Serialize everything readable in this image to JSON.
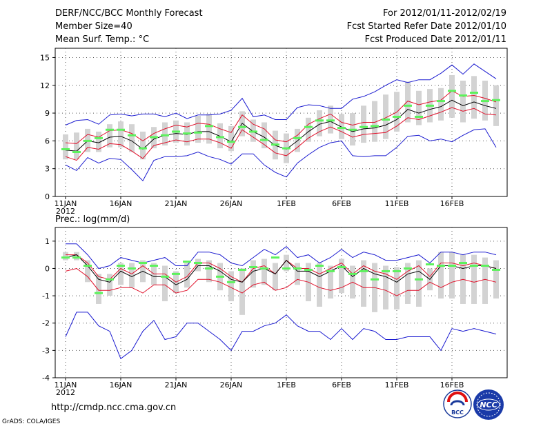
{
  "header": {
    "title": "DERF/NCC/BCC Monthly Forecast",
    "member_size": "Member Size=40",
    "variable": "Mean Surf. Temp.: °C",
    "period": "For 2012/01/11-2012/02/19",
    "started": "Fcst Started Refer Date 2012/01/10",
    "produced": "Fcst Produced Date 2012/01/11"
  },
  "footer": {
    "url": "http://cmdp.ncc.cma.gov.cn",
    "credit": "GrADS: COLA/IGES",
    "logo_bcc_text": "BCC",
    "logo_ncc_text": "NCC"
  },
  "colors": {
    "box": "#d3d3d3",
    "median": "#5cf25c",
    "mean": "#000000",
    "sd": "#e0102a",
    "range": "#1a1ad0",
    "grid": "#555555"
  },
  "chart_data": [
    {
      "type": "line",
      "title": "Mean Surf. Temp.: °C",
      "xlabel": "",
      "ylabel": "",
      "x_tick_labels": [
        "11JAN",
        "16JAN",
        "21JAN",
        "26JAN",
        "1FEB",
        "6FEB",
        "11FEB",
        "16FEB"
      ],
      "x_year_label": "2012",
      "y_ticks": [
        0,
        3,
        6,
        9,
        12,
        15
      ],
      "ylim": [
        0,
        16
      ],
      "days": 40,
      "series": [
        {
          "name": "max",
          "values": [
            3.4,
            2.8,
            4.2,
            3.6,
            4.1,
            4.0,
            2.9,
            1.7,
            3.9,
            4.3,
            4.3,
            4.4,
            4.8,
            4.3,
            4.0,
            3.5,
            4.6,
            4.6,
            3.4,
            2.6,
            2.1,
            3.6,
            4.5,
            5.3,
            5.8,
            6.0,
            4.4,
            4.3,
            4.4,
            4.4,
            5.3,
            6.5,
            6.6,
            6.0,
            6.2,
            5.9,
            6.6,
            7.2,
            7.3,
            5.3
          ]
        },
        {
          "name": "p-sd",
          "values": [
            4.3,
            3.9,
            5.3,
            5.1,
            5.7,
            5.6,
            4.9,
            4.1,
            5.5,
            5.8,
            6.1,
            5.9,
            6.2,
            6.2,
            5.8,
            5.2,
            7.2,
            6.4,
            5.6,
            4.7,
            4.4,
            5.3,
            6.3,
            7.0,
            7.5,
            7.0,
            6.4,
            6.7,
            6.8,
            6.9,
            7.6,
            8.5,
            8.3,
            8.7,
            9.1,
            9.6,
            9.2,
            9.5,
            8.9,
            8.8
          ]
        },
        {
          "name": "mean",
          "values": [
            5.0,
            4.9,
            6.0,
            5.8,
            6.4,
            6.5,
            6.0,
            5.1,
            6.2,
            6.6,
            6.8,
            6.7,
            7.0,
            7.0,
            6.5,
            5.9,
            7.9,
            7.0,
            6.4,
            5.5,
            5.1,
            6.0,
            7.0,
            7.8,
            8.1,
            7.5,
            7.0,
            7.3,
            7.4,
            7.7,
            8.3,
            9.4,
            9.0,
            9.4,
            9.7,
            10.4,
            9.8,
            10.2,
            9.8,
            9.5
          ]
        },
        {
          "name": "p+sd",
          "values": [
            5.8,
            5.7,
            6.7,
            6.4,
            7.1,
            7.2,
            6.8,
            6.0,
            6.8,
            7.3,
            7.7,
            7.5,
            7.9,
            7.8,
            7.3,
            6.9,
            8.8,
            7.8,
            7.3,
            6.1,
            5.9,
            6.6,
            7.8,
            8.4,
            8.9,
            8.0,
            7.7,
            8.0,
            8.0,
            8.5,
            9.1,
            10.3,
            9.9,
            10.2,
            10.4,
            11.4,
            10.8,
            10.9,
            10.6,
            10.2
          ]
        },
        {
          "name": "min",
          "values": [
            7.7,
            8.2,
            8.3,
            7.8,
            8.8,
            8.9,
            8.7,
            8.9,
            8.9,
            8.6,
            9.0,
            8.4,
            8.8,
            8.8,
            8.9,
            9.3,
            10.6,
            8.6,
            8.8,
            8.3,
            8.3,
            9.6,
            9.9,
            9.8,
            9.5,
            9.5,
            10.5,
            10.8,
            11.3,
            12.0,
            12.6,
            12.3,
            12.6,
            12.6,
            13.3,
            14.2,
            13.2,
            14.3,
            13.5,
            12.7
          ]
        },
        {
          "name": "median",
          "values": [
            5.1,
            4.8,
            6.0,
            6.3,
            7.2,
            7.2,
            6.6,
            5.2,
            6.4,
            6.6,
            7.0,
            6.8,
            6.9,
            7.6,
            6.4,
            5.9,
            7.5,
            7.0,
            6.1,
            5.6,
            5.2,
            6.3,
            7.5,
            8.2,
            8.2,
            7.4,
            7.2,
            7.5,
            7.6,
            8.3,
            8.6,
            9.8,
            8.6,
            9.8,
            10.3,
            11.4,
            10.9,
            11.2,
            10.3,
            10.4
          ]
        },
        {
          "name": "box_low",
          "values": [
            4.0,
            4.0,
            4.8,
            4.8,
            5.3,
            5.3,
            4.8,
            4.0,
            5.2,
            5.5,
            5.8,
            5.5,
            5.8,
            5.7,
            5.2,
            4.9,
            6.5,
            5.9,
            5.2,
            4.0,
            3.6,
            4.8,
            5.9,
            6.5,
            6.8,
            6.2,
            5.5,
            5.8,
            5.9,
            6.2,
            7.0,
            8.0,
            7.7,
            8.0,
            8.2,
            8.5,
            8.0,
            8.4,
            8.2,
            7.6
          ]
        },
        {
          "name": "box_high",
          "values": [
            6.7,
            6.9,
            7.3,
            7.0,
            7.8,
            8.1,
            7.8,
            7.0,
            7.5,
            8.0,
            8.2,
            8.0,
            8.7,
            8.9,
            7.9,
            7.6,
            9.2,
            8.3,
            8.0,
            7.1,
            6.8,
            7.3,
            8.5,
            9.3,
            9.8,
            8.9,
            9.0,
            9.8,
            10.3,
            11.0,
            11.3,
            12.4,
            11.4,
            11.6,
            11.7,
            13.1,
            12.5,
            13.0,
            12.5,
            12.0
          ]
        }
      ]
    },
    {
      "type": "line",
      "title": "Prec.: log(mm/d)",
      "xlabel": "",
      "ylabel": "",
      "x_tick_labels": [
        "11JAN",
        "16JAN",
        "21JAN",
        "26JAN",
        "1FEB",
        "6FEB",
        "11FEB",
        "16FEB"
      ],
      "x_year_label": "2012",
      "y_ticks": [
        -4,
        -3,
        -2,
        -1,
        0,
        1
      ],
      "ylim": [
        -4,
        1.5
      ],
      "days": 40,
      "series": [
        {
          "name": "min",
          "values": [
            -2.5,
            -1.6,
            -1.6,
            -2.1,
            -2.3,
            -3.3,
            -3.0,
            -2.3,
            -1.9,
            -2.6,
            -2.5,
            -2.0,
            -2.0,
            -2.3,
            -2.6,
            -3.0,
            -2.3,
            -2.3,
            -2.1,
            -2.0,
            -1.7,
            -2.1,
            -2.3,
            -2.3,
            -2.6,
            -2.2,
            -2.6,
            -2.2,
            -2.3,
            -2.6,
            -2.6,
            -2.5,
            -2.5,
            -2.5,
            -3.0,
            -2.2,
            -2.3,
            -2.2,
            -2.3,
            -2.4
          ]
        },
        {
          "name": "p-sd",
          "values": [
            -0.1,
            0.0,
            -0.3,
            -0.8,
            -0.8,
            -0.7,
            -0.7,
            -0.9,
            -0.6,
            -0.6,
            -0.9,
            -0.8,
            -0.4,
            -0.4,
            -0.5,
            -0.7,
            -0.9,
            -0.6,
            -0.5,
            -0.8,
            -0.7,
            -0.4,
            -0.5,
            -0.7,
            -0.8,
            -0.7,
            -0.5,
            -0.7,
            -0.7,
            -0.8,
            -1.0,
            -0.8,
            -0.8,
            -0.5,
            -0.7,
            -0.5,
            -0.4,
            -0.5,
            -0.4,
            -0.5
          ]
        },
        {
          "name": "mean",
          "values": [
            0.4,
            0.5,
            0.1,
            -0.4,
            -0.5,
            -0.1,
            -0.3,
            -0.1,
            -0.3,
            -0.3,
            -0.6,
            -0.4,
            0.1,
            0.1,
            -0.1,
            -0.4,
            -0.5,
            -0.1,
            0.0,
            -0.2,
            0.3,
            -0.1,
            -0.1,
            -0.3,
            -0.1,
            0.1,
            -0.3,
            0.0,
            -0.2,
            -0.3,
            -0.5,
            -0.2,
            -0.1,
            -0.4,
            0.1,
            0.1,
            0.0,
            0.1,
            0.1,
            0.0
          ]
        },
        {
          "name": "p+sd",
          "values": [
            0.5,
            0.5,
            0.2,
            -0.3,
            -0.4,
            0.0,
            -0.2,
            0.1,
            -0.2,
            -0.2,
            -0.5,
            -0.3,
            0.2,
            0.2,
            0.0,
            -0.3,
            -0.5,
            0.0,
            0.1,
            -0.2,
            0.3,
            0.0,
            0.0,
            -0.2,
            0.0,
            0.2,
            -0.2,
            0.1,
            -0.1,
            -0.2,
            -0.4,
            -0.1,
            0.1,
            -0.3,
            0.2,
            0.2,
            0.1,
            0.2,
            0.1,
            0.0
          ]
        },
        {
          "name": "max",
          "values": [
            0.9,
            0.9,
            0.5,
            0.0,
            0.1,
            0.4,
            0.3,
            0.2,
            0.3,
            0.4,
            0.1,
            0.1,
            0.6,
            0.6,
            0.5,
            0.2,
            0.1,
            0.4,
            0.7,
            0.5,
            0.8,
            0.4,
            0.5,
            0.2,
            0.4,
            0.7,
            0.4,
            0.6,
            0.5,
            0.3,
            0.3,
            0.4,
            0.5,
            0.2,
            0.6,
            0.6,
            0.5,
            0.6,
            0.6,
            0.5
          ]
        },
        {
          "name": "median",
          "values": [
            0.4,
            0.4,
            0.1,
            -0.9,
            -0.4,
            0.1,
            0.0,
            0.2,
            0.1,
            -0.3,
            -0.2,
            0.25,
            0.2,
            0.0,
            -0.3,
            -0.5,
            -0.05,
            0.05,
            0.0,
            0.4,
            0.0,
            0.0,
            -0.05,
            0.1,
            -0.1,
            0.05,
            -0.2,
            -0.1,
            -0.4,
            -0.1,
            -0.1,
            0.0,
            -0.4,
            0.15,
            0.1,
            0.1,
            0.2,
            0.1,
            0.1,
            -0.05
          ]
        },
        {
          "name": "box_low",
          "values": [
            0.3,
            0.3,
            -0.5,
            -1.3,
            -1.0,
            -0.6,
            -0.7,
            -0.5,
            -0.6,
            -1.2,
            -0.9,
            -0.7,
            -0.1,
            -0.5,
            -0.8,
            -1.2,
            -1.7,
            -0.7,
            -0.6,
            -0.8,
            -0.1,
            -0.6,
            -1.2,
            -1.4,
            -1.1,
            -0.9,
            -1.1,
            -1.4,
            -1.6,
            -1.5,
            -1.5,
            -1.3,
            -1.4,
            -0.8,
            -1.1,
            -1.1,
            -1.3,
            -1.3,
            -1.3,
            -1.1
          ]
        },
        {
          "name": "box_high",
          "values": [
            0.6,
            0.6,
            0.3,
            -0.2,
            -0.2,
            0.2,
            0.2,
            0.3,
            0.2,
            0.1,
            -0.1,
            0.2,
            0.35,
            0.3,
            0.2,
            -0.1,
            0.0,
            0.3,
            0.35,
            0.2,
            0.5,
            0.2,
            0.2,
            0.2,
            0.1,
            0.35,
            0.1,
            0.3,
            0.2,
            0.1,
            0.05,
            0.2,
            0.3,
            0.0,
            0.6,
            0.6,
            0.5,
            0.5,
            0.4,
            0.3
          ]
        }
      ]
    }
  ]
}
